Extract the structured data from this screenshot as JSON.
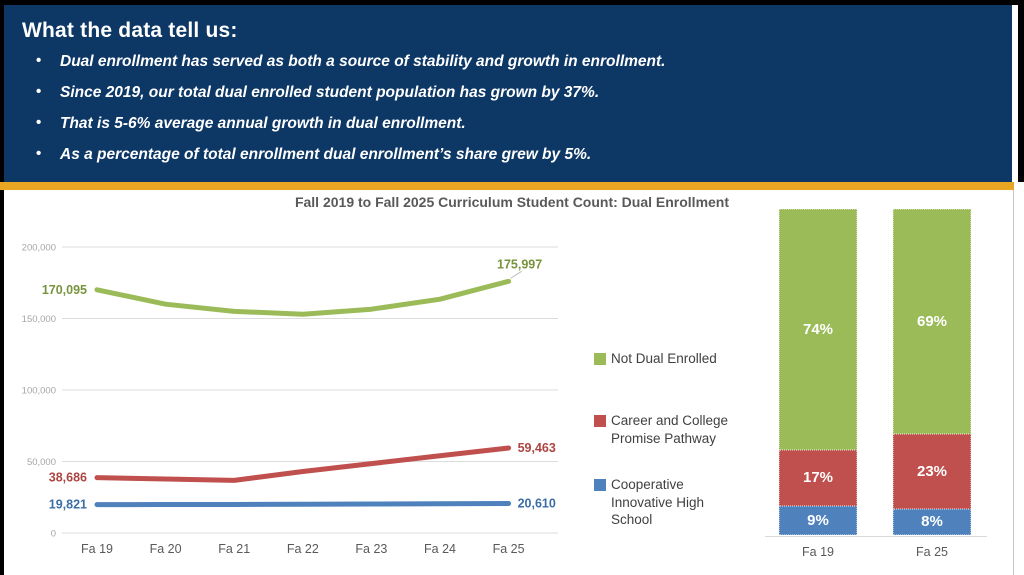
{
  "colors": {
    "header_bg": "#0D3765",
    "divider_gold": "#E9A622",
    "series_green": "#9BBB59",
    "series_red": "#C0504D",
    "series_blue": "#4F81BD"
  },
  "header": {
    "title": "What the data tell us:",
    "bullets": [
      "Dual enrollment has served as both a source of stability and growth in enrollment.",
      "Since 2019, our total dual enrolled student population has grown by 37%.",
      "That is 5-6% average annual growth in dual enrollment.",
      "As a percentage of total enrollment dual enrollment’s share grew by 5%."
    ]
  },
  "chart_title": "Fall 2019 to Fall 2025 Curriculum Student Count: Dual Enrollment",
  "legend": [
    {
      "label": "Not Dual Enrolled",
      "color": "#9BBB59"
    },
    {
      "label": "Career and College Promise Pathway",
      "color": "#C0504D"
    },
    {
      "label": "Cooperative Innovative High School",
      "color": "#4F81BD"
    }
  ],
  "chart_data": [
    {
      "type": "line",
      "title": "Fall 2019 to Fall 2025 Curriculum Student Count: Dual Enrollment",
      "x": [
        "Fa 19",
        "Fa 20",
        "Fa 21",
        "Fa 22",
        "Fa 23",
        "Fa 24",
        "Fa 25"
      ],
      "ylim": [
        0,
        200000
      ],
      "grid": true,
      "yticks": [
        {
          "value": 0,
          "label": "0"
        },
        {
          "value": 50000,
          "label": "50,000"
        },
        {
          "value": 100000,
          "label": "100,000"
        },
        {
          "value": 150000,
          "label": "150,000"
        },
        {
          "value": 200000,
          "label": "200,000"
        }
      ],
      "series": [
        {
          "name": "Not Dual Enrolled",
          "color": "#9BBB59",
          "label_color": "#77933C",
          "values": [
            170095,
            160000,
            155000,
            153000,
            156500,
            163500,
            175997
          ],
          "start_label": "170,095",
          "end_label": "175,997",
          "leader": true
        },
        {
          "name": "Career and College Promise Pathway",
          "color": "#C0504D",
          "label_color": "#AC4542",
          "values": [
            38686,
            37800,
            36800,
            43000,
            48500,
            54000,
            59463
          ],
          "start_label": "38,686",
          "end_label": "59,463",
          "leader": false
        },
        {
          "name": "Cooperative Innovative High School",
          "color": "#4F81BD",
          "label_color": "#3C6EA5",
          "values": [
            19821,
            19900,
            19950,
            20100,
            20300,
            20450,
            20610
          ],
          "start_label": "19,821",
          "end_label": "20,610",
          "leader": false
        }
      ]
    },
    {
      "type": "bar",
      "stacked": true,
      "unit": "%",
      "ylim": [
        0,
        100
      ],
      "categories": [
        "Fa 19",
        "Fa 25"
      ],
      "series": [
        {
          "name": "Cooperative Innovative High School",
          "color": "#4F81BD",
          "values": [
            9,
            8
          ]
        },
        {
          "name": "Career and College Promise Pathway",
          "color": "#C0504D",
          "values": [
            17,
            23
          ]
        },
        {
          "name": "Not Dual Enrolled",
          "color": "#9BBB59",
          "values": [
            74,
            69
          ]
        }
      ]
    }
  ]
}
